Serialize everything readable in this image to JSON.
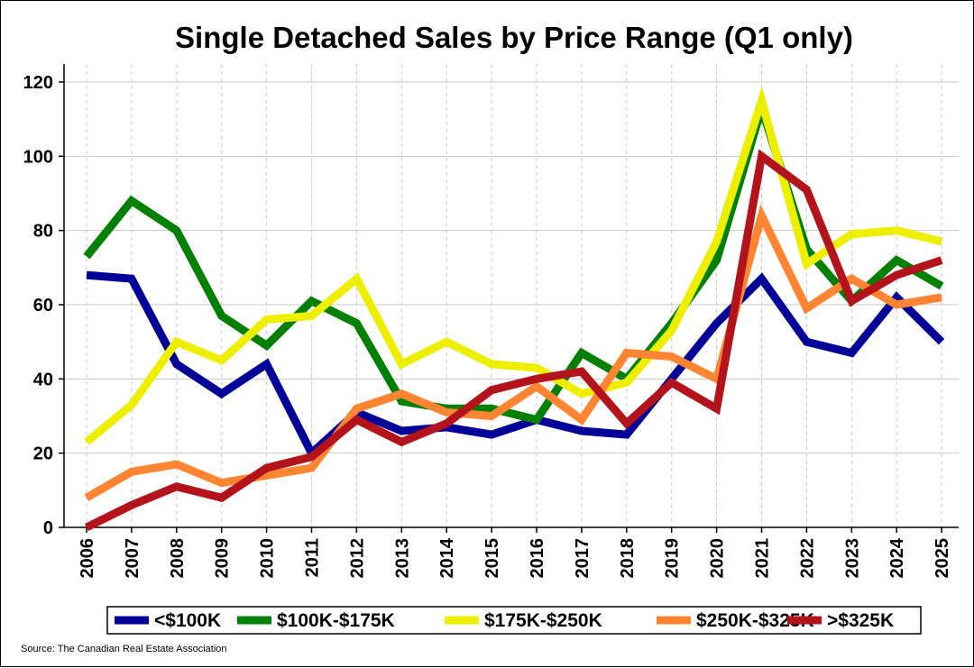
{
  "chart_data": {
    "type": "line",
    "title": "Single Detached Sales by Price Range (Q1 only)",
    "xlabel": "",
    "ylabel": "",
    "ylim": [
      0,
      120
    ],
    "yticks": [
      "0",
      "20",
      "40",
      "60",
      "80",
      "100",
      "120"
    ],
    "grid": "vertical dashed, horizontal solid",
    "legend_position": "bottom",
    "x": [
      "2006",
      "2007",
      "2008",
      "2009",
      "2010",
      "2011",
      "2012",
      "2013",
      "2014",
      "2015",
      "2016",
      "2017",
      "2018",
      "2019",
      "2020",
      "2021",
      "2022",
      "2023",
      "2024",
      "2025"
    ],
    "series": [
      {
        "name": "<$100K",
        "color": "#000099",
        "values": [
          68,
          67,
          44,
          36,
          44,
          20,
          31,
          26,
          27,
          25,
          29,
          26,
          25,
          40,
          55,
          67,
          50,
          47,
          62,
          50
        ]
      },
      {
        "name": "$100K-$175K",
        "color": "#008000",
        "values": [
          73,
          88,
          80,
          57,
          49,
          61,
          55,
          34,
          32,
          32,
          29,
          47,
          40,
          55,
          72,
          113,
          75,
          61,
          72,
          65
        ]
      },
      {
        "name": "$175K-$250K",
        "color": "#eeee00",
        "values": [
          23,
          33,
          50,
          45,
          56,
          57,
          67,
          44,
          50,
          44,
          43,
          36,
          39,
          53,
          77,
          115,
          71,
          79,
          80,
          77
        ]
      },
      {
        "name": "$250K-$325K",
        "color": "#ff8533",
        "values": [
          8,
          15,
          17,
          12,
          14,
          16,
          32,
          36,
          31,
          30,
          38,
          29,
          47,
          46,
          40,
          84,
          59,
          67,
          60,
          62
        ]
      },
      {
        "name": ">$325K",
        "color": "#b3141c",
        "values": [
          0,
          6,
          11,
          8,
          16,
          19,
          29,
          23,
          28,
          37,
          40,
          42,
          28,
          39,
          32,
          100,
          91,
          61,
          68,
          72
        ]
      }
    ]
  },
  "source": "Source: The Canadian Real Estate Association"
}
